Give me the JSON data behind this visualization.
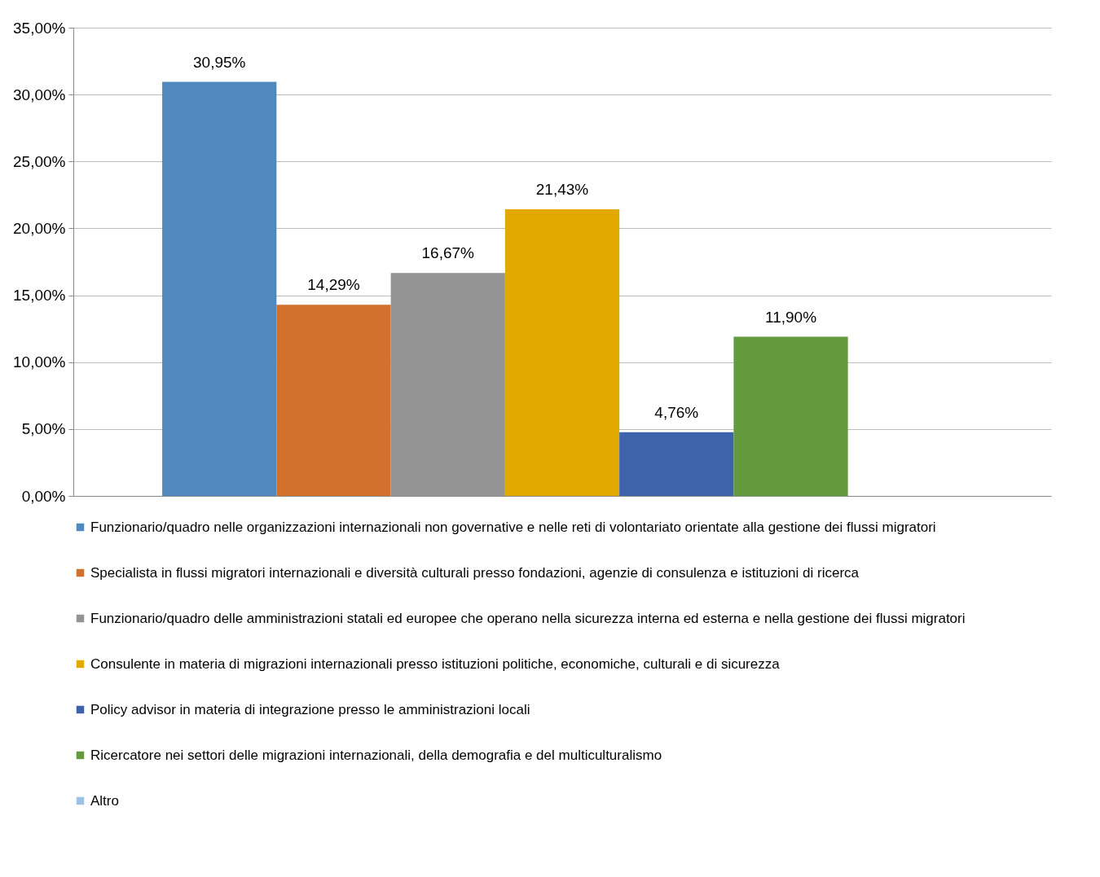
{
  "chart_data": {
    "type": "bar",
    "categories": [
      null
    ],
    "series": [
      {
        "name": "Funzionario/quadro nelle organizzazioni internazionali non governative e nelle reti di volontariato orientate alla gestione dei flussi migratori",
        "color": "#4f89bd",
        "values": [
          30.95
        ],
        "value_labels": [
          "30,95%"
        ]
      },
      {
        "name": "Specialista in flussi migratori internazionali e diversità culturali presso fondazioni, agenzie di consulenza e istituzioni di ricerca",
        "color": "#d2702d",
        "values": [
          14.29
        ],
        "value_labels": [
          "14,29%"
        ]
      },
      {
        "name": "Funzionario/quadro delle amministrazioni statali ed europee che operano nella sicurezza interna ed esterna e nella gestione dei flussi migratori",
        "color": "#949494",
        "values": [
          16.67
        ],
        "value_labels": [
          "16,67%"
        ]
      },
      {
        "name": "Consulente in materia di migrazioni internazionali presso istituzioni politiche, economiche, culturali e di sicurezza",
        "color": "#e2a900",
        "values": [
          21.43
        ],
        "value_labels": [
          "21,43%"
        ]
      },
      {
        "name": "Policy advisor in materia di integrazione presso le amministrazioni locali",
        "color": "#3c63ab",
        "values": [
          4.76
        ],
        "value_labels": [
          "4,76%"
        ]
      },
      {
        "name": "Ricercatore nei settori delle migrazioni internazionali, della demografia e del multiculturalismo",
        "color": "#639a3d",
        "values": [
          11.9
        ],
        "value_labels": [
          "11,90%"
        ]
      },
      {
        "name": "Altro",
        "color": "#9cc3e5",
        "values": [
          null
        ],
        "value_labels": [
          null
        ]
      }
    ],
    "ylim": [
      0,
      35
    ],
    "yticks": [
      {
        "value": 0,
        "label": "0,00%"
      },
      {
        "value": 5,
        "label": "5,00%"
      },
      {
        "value": 10,
        "label": "10,00%"
      },
      {
        "value": 15,
        "label": "15,00%"
      },
      {
        "value": 20,
        "label": "20,00%"
      },
      {
        "value": 25,
        "label": "25,00%"
      },
      {
        "value": 30,
        "label": "30,00%"
      },
      {
        "value": 35,
        "label": "35,00%"
      }
    ],
    "grid": "y",
    "legend": "bottom"
  }
}
